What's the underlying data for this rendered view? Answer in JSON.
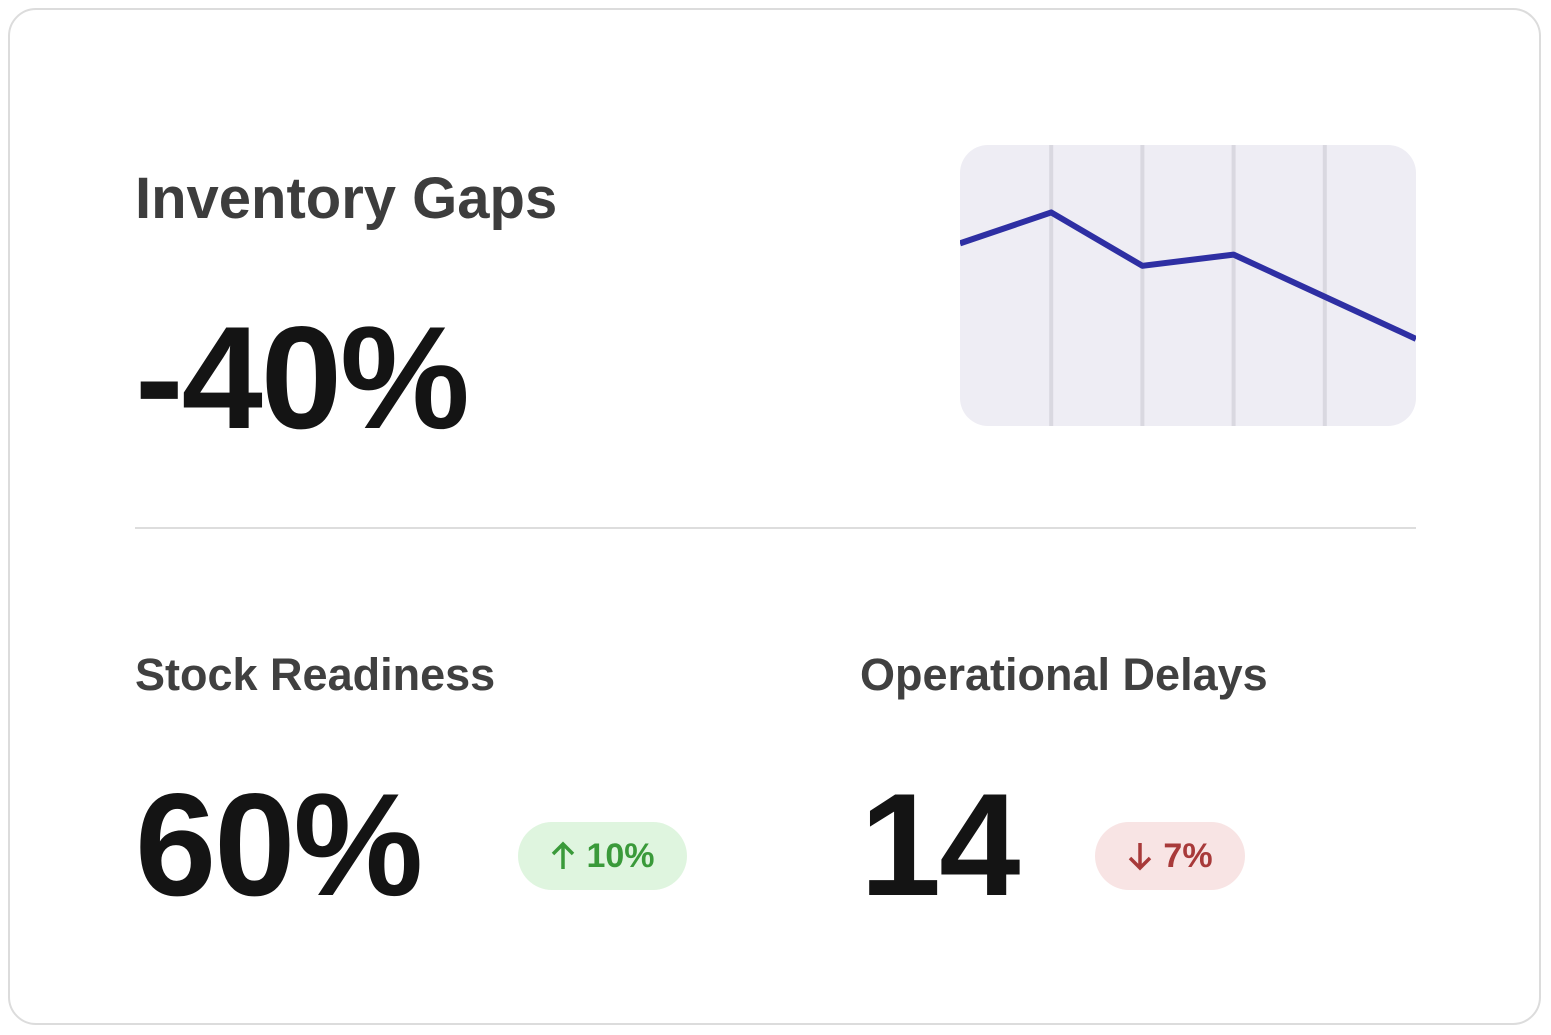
{
  "header": {
    "title": "Inventory Gaps",
    "value": "-40%"
  },
  "sparkline": {
    "values": [
      65,
      76,
      57,
      61,
      46,
      31
    ],
    "ylim": [
      0,
      100
    ],
    "color": "#2e2fa3"
  },
  "metrics": [
    {
      "label": "Stock Readiness",
      "value": "60%",
      "change": "10%",
      "direction": "up"
    },
    {
      "label": "Operational Delays",
      "value": "14",
      "change": "7%",
      "direction": "down"
    }
  ]
}
